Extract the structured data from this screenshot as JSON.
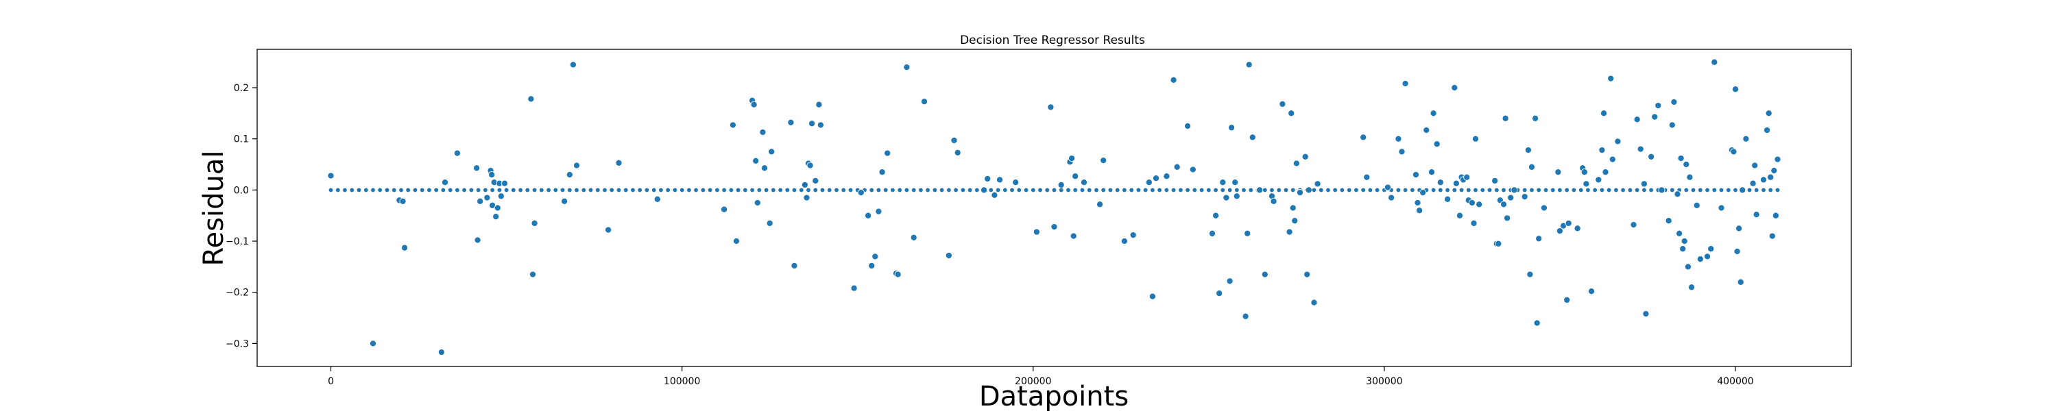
{
  "chart_data": {
    "type": "scatter",
    "title": "Decision Tree Regressor Results",
    "xlabel": "Datapoints",
    "ylabel": "Residual",
    "xlim": [
      -21000,
      433000
    ],
    "ylim": [
      -0.345,
      0.275
    ],
    "xticks": [
      0,
      100000,
      200000,
      300000,
      400000
    ],
    "yticks": [
      -0.3,
      -0.2,
      -0.1,
      0.0,
      0.1,
      0.2
    ],
    "grid": false,
    "color": "#1f77b4",
    "baseline": {
      "y": 0.0,
      "x_start": 0,
      "x_end": 412000,
      "step": 2000,
      "note": "dense row of points at residual 0"
    },
    "points": [
      [
        0,
        0.028
      ],
      [
        12000,
        -0.3
      ],
      [
        19500,
        -0.02
      ],
      [
        20500,
        -0.022
      ],
      [
        21000,
        -0.113
      ],
      [
        31500,
        -0.317
      ],
      [
        32500,
        0.015
      ],
      [
        36000,
        0.072
      ],
      [
        41500,
        0.043
      ],
      [
        41800,
        -0.098
      ],
      [
        42500,
        -0.022
      ],
      [
        44500,
        -0.015
      ],
      [
        45500,
        0.038
      ],
      [
        45800,
        0.03
      ],
      [
        46000,
        -0.03
      ],
      [
        46500,
        0.015
      ],
      [
        47000,
        -0.052
      ],
      [
        47500,
        -0.035
      ],
      [
        48000,
        0.013
      ],
      [
        48500,
        -0.012
      ],
      [
        49500,
        0.013
      ],
      [
        57000,
        0.178
      ],
      [
        57500,
        -0.165
      ],
      [
        58000,
        -0.065
      ],
      [
        66500,
        -0.022
      ],
      [
        68000,
        0.03
      ],
      [
        69000,
        0.245
      ],
      [
        70000,
        0.048
      ],
      [
        79000,
        -0.078
      ],
      [
        82000,
        0.053
      ],
      [
        93000,
        -0.018
      ],
      [
        112000,
        -0.038
      ],
      [
        114500,
        0.127
      ],
      [
        115500,
        -0.1
      ],
      [
        120000,
        0.175
      ],
      [
        120500,
        0.167
      ],
      [
        121000,
        0.057
      ],
      [
        121500,
        -0.025
      ],
      [
        123000,
        0.113
      ],
      [
        123500,
        0.043
      ],
      [
        125000,
        -0.065
      ],
      [
        125500,
        0.075
      ],
      [
        131000,
        0.132
      ],
      [
        132000,
        -0.148
      ],
      [
        135000,
        0.01
      ],
      [
        135500,
        -0.015
      ],
      [
        136000,
        0.052
      ],
      [
        136500,
        0.048
      ],
      [
        137000,
        0.13
      ],
      [
        138000,
        0.018
      ],
      [
        139000,
        0.167
      ],
      [
        139500,
        0.127
      ],
      [
        149000,
        -0.192
      ],
      [
        151000,
        -0.005
      ],
      [
        153000,
        -0.05
      ],
      [
        154000,
        -0.148
      ],
      [
        155000,
        -0.13
      ],
      [
        156000,
        -0.042
      ],
      [
        157000,
        0.035
      ],
      [
        158500,
        0.072
      ],
      [
        161000,
        -0.163
      ],
      [
        161500,
        -0.165
      ],
      [
        164000,
        0.24
      ],
      [
        166000,
        -0.093
      ],
      [
        169000,
        0.173
      ],
      [
        176000,
        -0.128
      ],
      [
        177500,
        0.097
      ],
      [
        178500,
        0.073
      ],
      [
        186000,
        0.0
      ],
      [
        187000,
        0.022
      ],
      [
        189000,
        -0.01
      ],
      [
        190500,
        0.02
      ],
      [
        195000,
        0.015
      ],
      [
        201000,
        -0.082
      ],
      [
        205000,
        0.162
      ],
      [
        206000,
        -0.072
      ],
      [
        208000,
        0.01
      ],
      [
        210500,
        0.055
      ],
      [
        211000,
        0.062
      ],
      [
        211500,
        -0.09
      ],
      [
        212000,
        0.027
      ],
      [
        214500,
        0.015
      ],
      [
        219000,
        -0.028
      ],
      [
        220000,
        0.058
      ],
      [
        226000,
        -0.1
      ],
      [
        228500,
        -0.088
      ],
      [
        233000,
        0.015
      ],
      [
        234000,
        -0.208
      ],
      [
        235000,
        0.023
      ],
      [
        238000,
        0.027
      ],
      [
        240000,
        0.215
      ],
      [
        241000,
        0.045
      ],
      [
        244000,
        0.125
      ],
      [
        245500,
        0.04
      ],
      [
        251000,
        -0.085
      ],
      [
        252000,
        -0.05
      ],
      [
        253000,
        -0.202
      ],
      [
        254000,
        0.015
      ],
      [
        255000,
        -0.015
      ],
      [
        256000,
        -0.178
      ],
      [
        256500,
        0.122
      ],
      [
        257500,
        0.015
      ],
      [
        258000,
        -0.012
      ],
      [
        260500,
        -0.247
      ],
      [
        261000,
        -0.085
      ],
      [
        261500,
        0.245
      ],
      [
        262500,
        0.103
      ],
      [
        264500,
        0.0
      ],
      [
        266000,
        -0.165
      ],
      [
        268000,
        -0.012
      ],
      [
        268500,
        -0.022
      ],
      [
        271000,
        0.168
      ],
      [
        273000,
        -0.082
      ],
      [
        273500,
        0.15
      ],
      [
        274000,
        -0.035
      ],
      [
        274500,
        -0.06
      ],
      [
        275000,
        0.052
      ],
      [
        276000,
        -0.005
      ],
      [
        277500,
        0.065
      ],
      [
        278000,
        -0.165
      ],
      [
        278500,
        0.0
      ],
      [
        280000,
        -0.22
      ],
      [
        281000,
        0.012
      ],
      [
        294000,
        0.103
      ],
      [
        295000,
        0.025
      ],
      [
        301000,
        0.005
      ],
      [
        302000,
        -0.015
      ],
      [
        304000,
        0.1
      ],
      [
        305000,
        0.075
      ],
      [
        306000,
        0.208
      ],
      [
        309000,
        0.03
      ],
      [
        309500,
        -0.025
      ],
      [
        310000,
        -0.04
      ],
      [
        311000,
        -0.005
      ],
      [
        312000,
        0.117
      ],
      [
        313500,
        0.035
      ],
      [
        314000,
        0.15
      ],
      [
        315000,
        0.09
      ],
      [
        316000,
        0.015
      ],
      [
        318000,
        -0.018
      ],
      [
        320000,
        0.2
      ],
      [
        320500,
        0.013
      ],
      [
        321500,
        -0.05
      ],
      [
        322000,
        0.025
      ],
      [
        322500,
        0.02
      ],
      [
        323500,
        0.025
      ],
      [
        324000,
        -0.02
      ],
      [
        325000,
        -0.025
      ],
      [
        325500,
        -0.065
      ],
      [
        326000,
        0.1
      ],
      [
        327000,
        -0.028
      ],
      [
        331500,
        0.018
      ],
      [
        332000,
        -0.105
      ],
      [
        332500,
        -0.105
      ],
      [
        333000,
        -0.02
      ],
      [
        334000,
        -0.028
      ],
      [
        334500,
        0.14
      ],
      [
        335000,
        -0.055
      ],
      [
        336000,
        -0.015
      ],
      [
        337000,
        0.0
      ],
      [
        340000,
        -0.013
      ],
      [
        341000,
        0.078
      ],
      [
        341500,
        -0.165
      ],
      [
        342000,
        0.045
      ],
      [
        343000,
        0.14
      ],
      [
        343500,
        -0.26
      ],
      [
        344000,
        -0.095
      ],
      [
        345500,
        -0.035
      ],
      [
        349500,
        0.035
      ],
      [
        350000,
        -0.08
      ],
      [
        351000,
        -0.07
      ],
      [
        352000,
        -0.215
      ],
      [
        352500,
        -0.065
      ],
      [
        355000,
        -0.075
      ],
      [
        356500,
        0.043
      ],
      [
        357000,
        0.035
      ],
      [
        357500,
        0.012
      ],
      [
        359000,
        -0.198
      ],
      [
        361000,
        0.02
      ],
      [
        362000,
        0.078
      ],
      [
        362500,
        0.15
      ],
      [
        363000,
        0.035
      ],
      [
        364500,
        0.218
      ],
      [
        365000,
        0.06
      ],
      [
        366500,
        0.095
      ],
      [
        371000,
        -0.068
      ],
      [
        372000,
        0.138
      ],
      [
        373000,
        0.08
      ],
      [
        374000,
        0.012
      ],
      [
        374500,
        -0.242
      ],
      [
        376000,
        0.065
      ],
      [
        377000,
        0.143
      ],
      [
        378000,
        0.165
      ],
      [
        379000,
        0.0
      ],
      [
        381000,
        -0.06
      ],
      [
        382000,
        0.127
      ],
      [
        382500,
        0.172
      ],
      [
        383500,
        -0.008
      ],
      [
        384000,
        -0.085
      ],
      [
        384500,
        0.062
      ],
      [
        385000,
        -0.115
      ],
      [
        385500,
        -0.1
      ],
      [
        386000,
        0.05
      ],
      [
        386500,
        -0.15
      ],
      [
        387000,
        0.025
      ],
      [
        387500,
        -0.19
      ],
      [
        389000,
        -0.03
      ],
      [
        390000,
        -0.135
      ],
      [
        392000,
        -0.13
      ],
      [
        393000,
        -0.115
      ],
      [
        394000,
        0.25
      ],
      [
        396000,
        -0.035
      ],
      [
        399000,
        0.078
      ],
      [
        399500,
        0.075
      ],
      [
        400000,
        0.197
      ],
      [
        400500,
        -0.12
      ],
      [
        401000,
        -0.075
      ],
      [
        401500,
        -0.18
      ],
      [
        402000,
        0.0
      ],
      [
        403000,
        0.1
      ],
      [
        405000,
        0.013
      ],
      [
        405500,
        0.048
      ],
      [
        406000,
        -0.048
      ],
      [
        408000,
        0.02
      ],
      [
        409000,
        0.117
      ],
      [
        409500,
        0.15
      ],
      [
        410000,
        0.025
      ],
      [
        410500,
        -0.09
      ],
      [
        411000,
        0.038
      ],
      [
        411500,
        -0.05
      ],
      [
        412000,
        0.06
      ]
    ]
  }
}
